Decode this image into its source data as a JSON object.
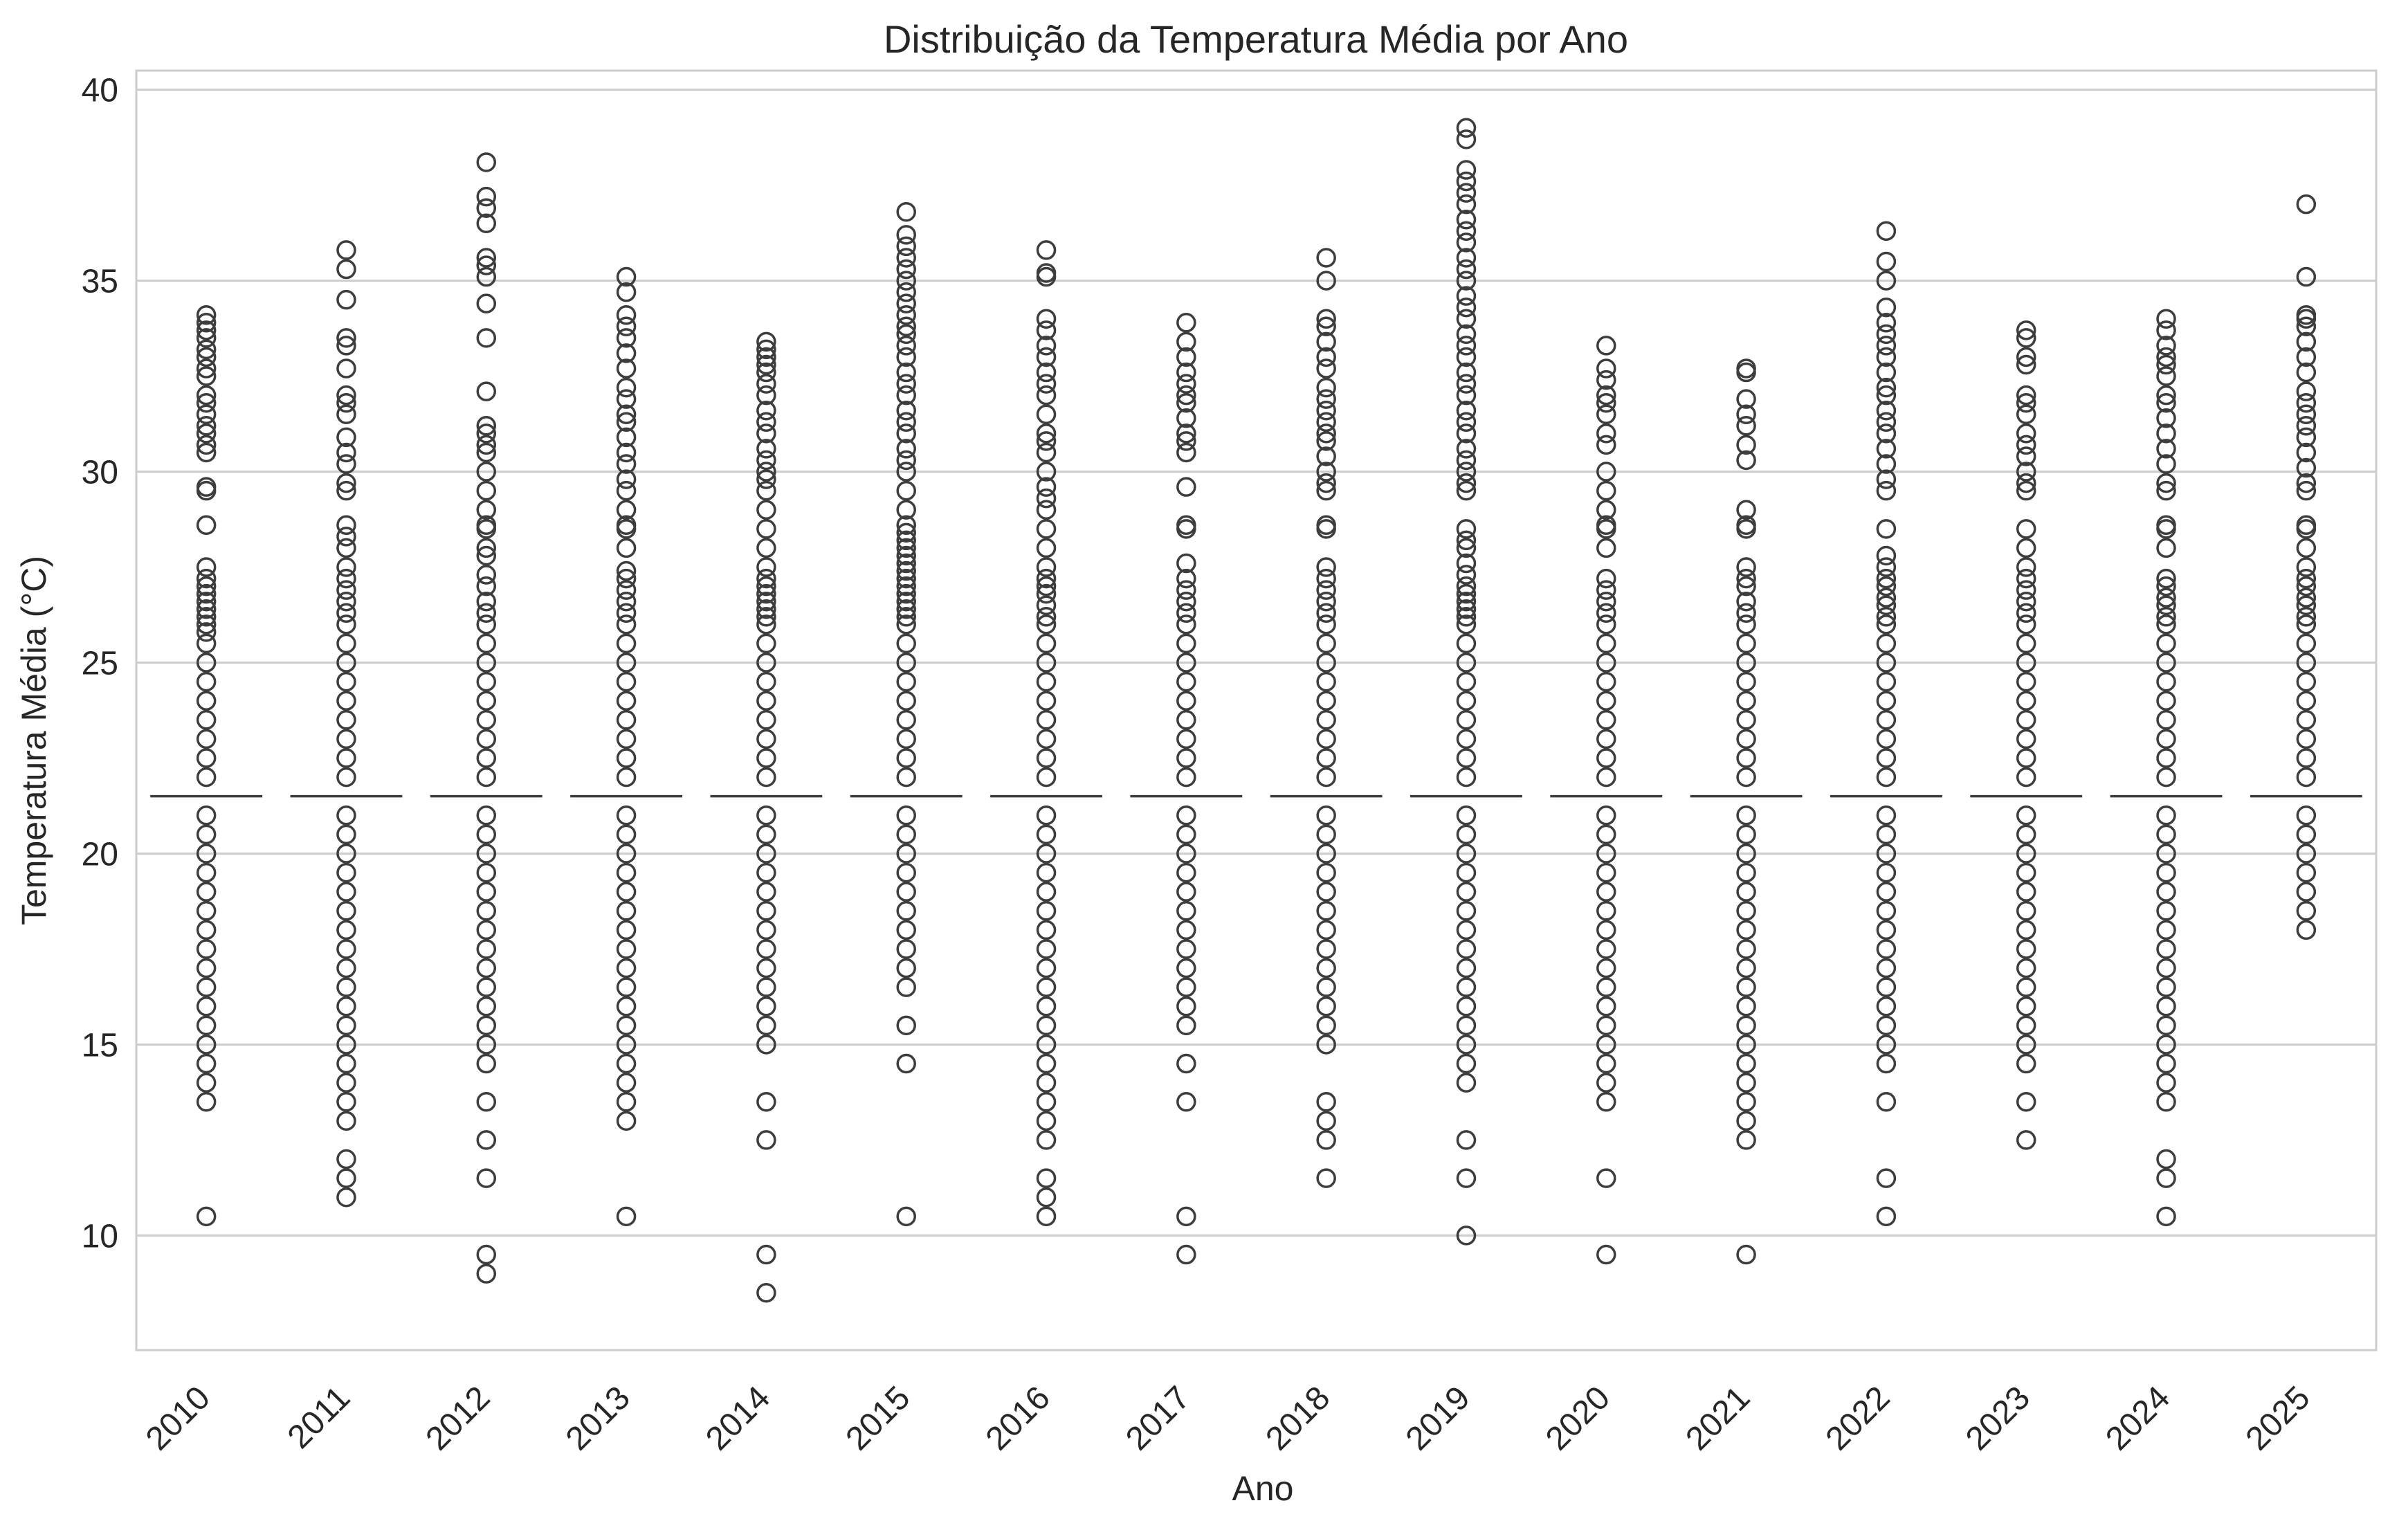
{
  "chart_data": {
    "type": "box",
    "title": "Distribuição da Temperatura Média por Ano",
    "xlabel": "Ano",
    "ylabel": "Temperatura Média (°C)",
    "ylim": [
      7,
      40.5
    ],
    "yticks": [
      10,
      15,
      20,
      25,
      30,
      35,
      40
    ],
    "grid": true,
    "colors": {
      "mark": "#3d3d3d",
      "grid": "#cccccc",
      "text": "#262626"
    },
    "categories": [
      "2010",
      "2011",
      "2012",
      "2013",
      "2014",
      "2015",
      "2016",
      "2017",
      "2018",
      "2019",
      "2020",
      "2021",
      "2022",
      "2023",
      "2024",
      "2025"
    ],
    "median": [
      21.5,
      21.5,
      21.5,
      21.5,
      21.5,
      21.5,
      21.5,
      21.5,
      21.5,
      21.5,
      21.5,
      21.5,
      21.5,
      21.5,
      21.5,
      21.5
    ],
    "outliers": {
      "2010": [
        10.5,
        13.5,
        14,
        14.5,
        15,
        15.5,
        16,
        16.5,
        17,
        17.5,
        18,
        18.5,
        19,
        19.5,
        20,
        20.5,
        21,
        22,
        22.5,
        23,
        23.5,
        24,
        24.5,
        25,
        25.5,
        25.8,
        26,
        26.2,
        26.4,
        26.6,
        26.8,
        27,
        27.2,
        27.5,
        28.6,
        29.5,
        29.6,
        30.5,
        30.7,
        31,
        31.2,
        31.5,
        31.8,
        32,
        32.5,
        32.7,
        33,
        33.2,
        33.5,
        33.7,
        33.9,
        34.1
      ],
      "2011": [
        11,
        11.5,
        12,
        13,
        13.5,
        14,
        14.5,
        15,
        15.5,
        16,
        16.5,
        17,
        17.5,
        18,
        18.5,
        19,
        19.5,
        20,
        20.5,
        21,
        22,
        22.5,
        23,
        23.5,
        24,
        24.5,
        25,
        25.5,
        26,
        26.3,
        26.6,
        26.9,
        27.2,
        27.5,
        28,
        28.3,
        28.6,
        29.5,
        29.7,
        30.2,
        30.5,
        30.9,
        31.5,
        31.8,
        32,
        32.7,
        33.3,
        33.5,
        34.5,
        35.3,
        35.8
      ],
      "2012": [
        9,
        9.5,
        11.5,
        12.5,
        13.5,
        14.5,
        15,
        15.5,
        16,
        16.5,
        17,
        17.5,
        18,
        18.5,
        19,
        19.5,
        20,
        20.5,
        21,
        22,
        22.5,
        23,
        23.5,
        24,
        24.5,
        25,
        25.5,
        26,
        26.3,
        26.6,
        27,
        27.3,
        27.8,
        28,
        28.5,
        28.6,
        29,
        29.5,
        30,
        30.5,
        30.7,
        31,
        31.2,
        32.1,
        33.5,
        34.4,
        35.1,
        35.4,
        35.6,
        36.5,
        36.9,
        37.2,
        38.1
      ],
      "2013": [
        10.5,
        13,
        13.5,
        14,
        14.5,
        15,
        15.5,
        16,
        16.5,
        17,
        17.5,
        18,
        18.5,
        19,
        19.5,
        20,
        20.5,
        21,
        22,
        22.5,
        23,
        23.5,
        24,
        24.5,
        25,
        25.5,
        26,
        26.3,
        26.6,
        26.9,
        27.2,
        27.4,
        28,
        28.5,
        28.6,
        29,
        29.5,
        29.8,
        30.2,
        30.5,
        30.9,
        31.3,
        31.5,
        31.9,
        32.2,
        32.7,
        33.1,
        33.5,
        33.8,
        34.1,
        34.7,
        35.1
      ],
      "2014": [
        8.5,
        9.5,
        12.5,
        13.5,
        15,
        15.5,
        16,
        16.5,
        17,
        17.5,
        18,
        18.5,
        19,
        19.5,
        20,
        20.5,
        21,
        22,
        22.5,
        23,
        23.5,
        24,
        24.5,
        25,
        25.5,
        26,
        26.2,
        26.4,
        26.6,
        26.8,
        27,
        27.2,
        27.5,
        28,
        28.5,
        29,
        29.5,
        29.8,
        30,
        30.3,
        30.6,
        31,
        31.3,
        31.6,
        32,
        32.3,
        32.6,
        32.8,
        33,
        33.2,
        33.4
      ],
      "2015": [
        10.5,
        14.5,
        15.5,
        16.5,
        17,
        17.5,
        18,
        18.5,
        19,
        19.5,
        20,
        20.5,
        21,
        22,
        22.5,
        23,
        23.5,
        24,
        24.5,
        25,
        25.5,
        26,
        26.2,
        26.4,
        26.6,
        26.8,
        27,
        27.2,
        27.4,
        27.6,
        27.8,
        28,
        28.2,
        28.4,
        28.6,
        29,
        29.5,
        30,
        30.3,
        30.6,
        31,
        31.3,
        31.6,
        32,
        32.3,
        32.6,
        33,
        33.3,
        33.6,
        33.8,
        34.1,
        34.4,
        34.7,
        35,
        35.3,
        35.6,
        35.9,
        36.2,
        36.8
      ],
      "2016": [
        10.5,
        11,
        11.5,
        12.5,
        13,
        13.5,
        14,
        14.5,
        15,
        15.5,
        16,
        16.5,
        17,
        17.5,
        18,
        18.5,
        19,
        19.5,
        20,
        20.5,
        21,
        22,
        22.5,
        23,
        23.5,
        24,
        24.5,
        25,
        25.5,
        26,
        26.2,
        26.5,
        26.8,
        27,
        27.2,
        27.5,
        28,
        28.5,
        29,
        29.3,
        29.6,
        30,
        30.5,
        30.8,
        31,
        31.5,
        32,
        32.3,
        32.6,
        33,
        33.3,
        33.7,
        34,
        35.1,
        35.2,
        35.8
      ],
      "2017": [
        9.5,
        10.5,
        13.5,
        14.5,
        15.5,
        16,
        16.5,
        17,
        17.5,
        18,
        18.5,
        19,
        19.5,
        20,
        20.5,
        21,
        22,
        22.5,
        23,
        23.5,
        24,
        24.5,
        25,
        25.5,
        26,
        26.3,
        26.6,
        26.9,
        27.2,
        27.6,
        28.5,
        28.6,
        29.6,
        30.5,
        30.8,
        31,
        31.4,
        31.8,
        32,
        32.3,
        32.6,
        33,
        33.4,
        33.9
      ],
      "2018": [
        11.5,
        12.5,
        13,
        13.5,
        15,
        15.5,
        16,
        16.5,
        17,
        17.5,
        18,
        18.5,
        19,
        19.5,
        20,
        20.5,
        21,
        22,
        22.5,
        23,
        23.5,
        24,
        24.5,
        25,
        25.5,
        26,
        26.3,
        26.6,
        26.9,
        27.2,
        27.5,
        28.5,
        28.6,
        29.5,
        29.7,
        30,
        30.4,
        30.8,
        31,
        31.3,
        31.6,
        31.9,
        32.2,
        32.7,
        33,
        33.4,
        33.8,
        34,
        35,
        35.6
      ],
      "2019": [
        10,
        11.5,
        12.5,
        14,
        14.5,
        15,
        15.5,
        16,
        16.5,
        17,
        17.5,
        18,
        18.5,
        19,
        19.5,
        20,
        20.5,
        21,
        22,
        22.5,
        23,
        23.5,
        24,
        24.5,
        25,
        25.5,
        26,
        26.2,
        26.4,
        26.6,
        26.8,
        27,
        27.3,
        27.6,
        28,
        28.2,
        28.5,
        29.5,
        29.7,
        30,
        30.3,
        30.6,
        31,
        31.3,
        31.6,
        32,
        32.3,
        32.6,
        33,
        33.3,
        33.6,
        34,
        34.3,
        34.6,
        35,
        35.3,
        35.6,
        36,
        36.3,
        36.6,
        37,
        37.3,
        37.6,
        37.9,
        38.7,
        39
      ],
      "2020": [
        9.5,
        11.5,
        13.5,
        14,
        14.5,
        15,
        15.5,
        16,
        16.5,
        17,
        17.5,
        18,
        18.5,
        19,
        19.5,
        20,
        20.5,
        21,
        22,
        22.5,
        23,
        23.5,
        24,
        24.5,
        25,
        25.5,
        26,
        26.3,
        26.6,
        26.9,
        27.2,
        28,
        28.5,
        28.6,
        29,
        29.5,
        30,
        30.7,
        31,
        31.5,
        31.8,
        32,
        32.4,
        32.7,
        33.3
      ],
      "2021": [
        9.5,
        12.5,
        13,
        13.5,
        14,
        14.5,
        15,
        15.5,
        16,
        16.5,
        17,
        17.5,
        18,
        18.5,
        19,
        19.5,
        20,
        20.5,
        21,
        22,
        22.5,
        23,
        23.5,
        24,
        24.5,
        25,
        25.5,
        26,
        26.3,
        26.6,
        27,
        27.2,
        27.5,
        28.5,
        28.6,
        29,
        30.3,
        30.7,
        31.2,
        31.5,
        31.9,
        32.6,
        32.7
      ],
      "2022": [
        10.5,
        11.5,
        13.5,
        14.5,
        15,
        15.5,
        16,
        16.5,
        17,
        17.5,
        18,
        18.5,
        19,
        19.5,
        20,
        20.5,
        21,
        22,
        22.5,
        23,
        23.5,
        24,
        24.5,
        25,
        25.5,
        26,
        26.2,
        26.5,
        26.7,
        27,
        27.2,
        27.5,
        27.8,
        28.5,
        29.5,
        29.8,
        30.2,
        30.6,
        31,
        31.3,
        31.6,
        32,
        32.2,
        32.6,
        33,
        33.3,
        33.6,
        33.9,
        34.3,
        35,
        35.5,
        36.3
      ],
      "2023": [
        12.5,
        13.5,
        14.5,
        15,
        15.5,
        16,
        16.5,
        17,
        17.5,
        18,
        18.5,
        19,
        19.5,
        20,
        20.5,
        21,
        22,
        22.5,
        23,
        23.5,
        24,
        24.5,
        25,
        25.5,
        26,
        26.3,
        26.6,
        26.9,
        27.2,
        27.5,
        28,
        28.5,
        29.5,
        29.7,
        30,
        30.4,
        30.7,
        31,
        31.5,
        31.8,
        32,
        32.8,
        33,
        33.5,
        33.7
      ],
      "2024": [
        10.5,
        11.5,
        12,
        13.5,
        14,
        14.5,
        15,
        15.5,
        16,
        16.5,
        17,
        17.5,
        18,
        18.5,
        19,
        19.5,
        20,
        20.5,
        21,
        22,
        22.5,
        23,
        23.5,
        24,
        24.5,
        25,
        25.5,
        26,
        26.2,
        26.5,
        26.7,
        27,
        27.2,
        28,
        28.5,
        28.6,
        29.5,
        29.7,
        30.2,
        30.6,
        31,
        31.4,
        31.8,
        32,
        32.5,
        32.8,
        33,
        33.3,
        33.7,
        34
      ],
      "2025": [
        18,
        18.5,
        19,
        19.5,
        20,
        20.5,
        21,
        22,
        22.5,
        23,
        23.5,
        24,
        24.5,
        25,
        25.5,
        26,
        26.2,
        26.5,
        26.7,
        27,
        27.2,
        27.5,
        28,
        28.5,
        28.6,
        29.5,
        29.7,
        30.1,
        30.5,
        30.9,
        31.2,
        31.5,
        31.8,
        32.1,
        32.6,
        33,
        33.4,
        33.8,
        34,
        34.1,
        35.1,
        37
      ]
    }
  }
}
